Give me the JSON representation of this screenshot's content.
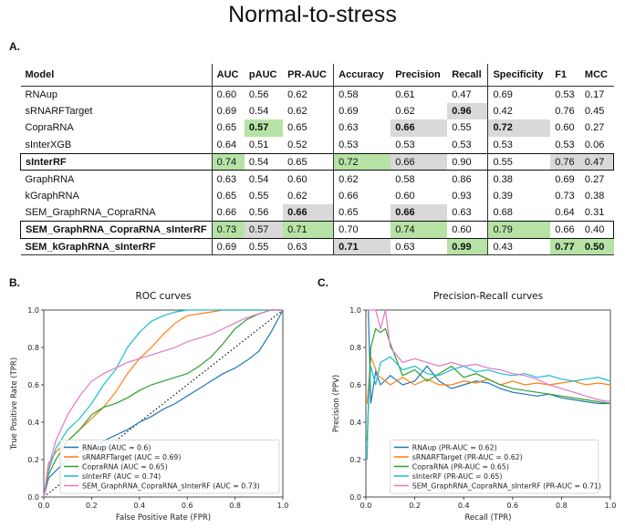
{
  "figure": {
    "title": "Normal-to-stress",
    "panel_a_label": "A.",
    "panel_b_label": "B.",
    "panel_c_label": "C."
  },
  "table": {
    "headers": [
      "Model",
      "AUC",
      "pAUC",
      "PR-AUC",
      "Accuracy",
      "Precision",
      "Recall",
      "Specificity",
      "F1",
      "MCC"
    ],
    "rows": [
      {
        "model": "RNAup",
        "values": [
          "0.60",
          "0.56",
          "0.62",
          "0.58",
          "0.61",
          "0.47",
          "0.69",
          "0.53",
          "0.17"
        ],
        "hl": [
          "",
          "",
          "",
          "",
          "",
          "",
          "",
          "",
          ""
        ]
      },
      {
        "model": "sRNARFTarget",
        "values": [
          "0.69",
          "0.54",
          "0.62",
          "0.69",
          "0.62",
          "0.96",
          "0.42",
          "0.76",
          "0.45"
        ],
        "hl": [
          "",
          "",
          "",
          "",
          "",
          "grey",
          "",
          "",
          ""
        ]
      },
      {
        "model": "CopraRNA",
        "values": [
          "0.65",
          "0.57",
          "0.65",
          "0.63",
          "0.66",
          "0.55",
          "0.72",
          "0.60",
          "0.27"
        ],
        "hl": [
          "",
          "green",
          "",
          "",
          "grey",
          "",
          "grey",
          "",
          ""
        ]
      },
      {
        "model": "sInterXGB",
        "values": [
          "0.64",
          "0.51",
          "0.52",
          "0.53",
          "0.53",
          "0.53",
          "0.53",
          "0.53",
          "0.06"
        ],
        "hl": [
          "",
          "",
          "",
          "",
          "",
          "",
          "",
          "",
          ""
        ]
      },
      {
        "model": "sInterRF",
        "values": [
          "0.74",
          "0.54",
          "0.65",
          "0.72",
          "0.66",
          "0.90",
          "0.55",
          "0.76",
          "0.47"
        ],
        "hl": [
          "green",
          "",
          "",
          "green",
          "grey",
          "",
          "",
          "grey",
          "grey"
        ],
        "boxed": true,
        "bold": true
      },
      {
        "model": "GraphRNA",
        "values": [
          "0.63",
          "0.54",
          "0.60",
          "0.62",
          "0.58",
          "0.86",
          "0.38",
          "0.69",
          "0.27"
        ],
        "hl": [
          "",
          "",
          "",
          "",
          "",
          "",
          "",
          "",
          ""
        ]
      },
      {
        "model": "kGraphRNA",
        "values": [
          "0.65",
          "0.55",
          "0.62",
          "0.66",
          "0.60",
          "0.93",
          "0.39",
          "0.73",
          "0.38"
        ],
        "hl": [
          "",
          "",
          "",
          "",
          "",
          "",
          "",
          "",
          ""
        ]
      },
      {
        "model": "SEM_GraphRNA_CopraRNA",
        "values": [
          "0.66",
          "0.56",
          "0.66",
          "0.65",
          "0.66",
          "0.63",
          "0.68",
          "0.64",
          "0.31"
        ],
        "hl": [
          "",
          "",
          "grey",
          "",
          "grey",
          "",
          "",
          "",
          ""
        ]
      },
      {
        "model": "SEM_GraphRNA_CopraRNA_sInterRF",
        "values": [
          "0.73",
          "0.57",
          "0.71",
          "0.70",
          "0.74",
          "0.60",
          "0.79",
          "0.66",
          "0.40"
        ],
        "hl": [
          "green",
          "grey",
          "green",
          "",
          "green",
          "",
          "green",
          "",
          ""
        ],
        "boxed": true,
        "bold": true
      },
      {
        "model": "SEM_kGraphRNA_sInterRF",
        "values": [
          "0.69",
          "0.55",
          "0.63",
          "0.71",
          "0.63",
          "0.99",
          "0.43",
          "0.77",
          "0.50"
        ],
        "hl": [
          "",
          "",
          "",
          "grey",
          "",
          "green",
          "",
          "green",
          "green"
        ],
        "bold": true
      }
    ]
  },
  "chart_data": [
    {
      "type": "line",
      "title": "ROC curves",
      "xlabel": "False Positive Rate (FPR)",
      "ylabel": "True Positive Rate (TPR)",
      "xlim": [
        0,
        1
      ],
      "ylim": [
        0,
        1
      ],
      "xticks": [
        "0.0",
        "0.2",
        "0.4",
        "0.6",
        "0.8",
        "1.0"
      ],
      "yticks": [
        "0.0",
        "0.2",
        "0.4",
        "0.6",
        "0.8",
        "1.0"
      ],
      "legend_position": "lower-right",
      "diagonal": true,
      "series": [
        {
          "name": "RNAup (AUC = 0.6)",
          "color": "#1f77b4",
          "x": [
            0,
            0.02,
            0.05,
            0.1,
            0.15,
            0.2,
            0.25,
            0.3,
            0.35,
            0.4,
            0.45,
            0.5,
            0.55,
            0.6,
            0.65,
            0.7,
            0.75,
            0.8,
            0.85,
            0.9,
            0.95,
            1.0
          ],
          "y": [
            0,
            0.1,
            0.14,
            0.2,
            0.24,
            0.26,
            0.3,
            0.33,
            0.36,
            0.4,
            0.43,
            0.47,
            0.5,
            0.54,
            0.58,
            0.62,
            0.66,
            0.69,
            0.73,
            0.78,
            0.88,
            1.0
          ]
        },
        {
          "name": "sRNARFTarget (AUC = 0.69)",
          "color": "#ff7f0e",
          "x": [
            0,
            0.02,
            0.05,
            0.1,
            0.15,
            0.2,
            0.25,
            0.3,
            0.35,
            0.4,
            0.45,
            0.5,
            0.55,
            0.6,
            0.65,
            0.7,
            0.75,
            0.8,
            0.85,
            0.9,
            0.95,
            1.0
          ],
          "y": [
            0,
            0.18,
            0.24,
            0.3,
            0.36,
            0.42,
            0.48,
            0.56,
            0.66,
            0.74,
            0.8,
            0.87,
            0.93,
            0.97,
            0.98,
            0.99,
            1.0,
            1.0,
            1.0,
            1.0,
            1.0,
            1.0
          ]
        },
        {
          "name": "CopraRNA (AUC = 0.65)",
          "color": "#2ca02c",
          "x": [
            0,
            0.02,
            0.05,
            0.1,
            0.15,
            0.2,
            0.25,
            0.3,
            0.35,
            0.4,
            0.45,
            0.5,
            0.55,
            0.6,
            0.65,
            0.7,
            0.75,
            0.8,
            0.85,
            0.9,
            0.95,
            1.0
          ],
          "y": [
            0,
            0.12,
            0.2,
            0.3,
            0.36,
            0.44,
            0.48,
            0.5,
            0.53,
            0.57,
            0.6,
            0.62,
            0.64,
            0.66,
            0.7,
            0.75,
            0.82,
            0.9,
            0.95,
            0.98,
            1.0,
            1.0
          ]
        },
        {
          "name": "sInterRF (AUC = 0.74)",
          "color": "#17becf",
          "x": [
            0,
            0.02,
            0.05,
            0.1,
            0.15,
            0.2,
            0.25,
            0.3,
            0.35,
            0.4,
            0.45,
            0.5,
            0.55,
            0.6,
            0.65,
            0.7,
            0.75,
            0.8,
            0.85,
            0.9,
            0.95,
            1.0
          ],
          "y": [
            0,
            0.14,
            0.26,
            0.36,
            0.42,
            0.5,
            0.6,
            0.68,
            0.8,
            0.88,
            0.94,
            0.97,
            0.99,
            1.0,
            1.0,
            1.0,
            1.0,
            1.0,
            1.0,
            1.0,
            1.0,
            1.0
          ]
        },
        {
          "name": "SEM_GraphRNA_CopraRNA_sInterRF (AUC = 0.73)",
          "color": "#e377c2",
          "x": [
            0,
            0.02,
            0.05,
            0.1,
            0.15,
            0.2,
            0.25,
            0.3,
            0.35,
            0.4,
            0.45,
            0.5,
            0.55,
            0.6,
            0.65,
            0.7,
            0.75,
            0.8,
            0.85,
            0.9,
            0.95,
            1.0
          ],
          "y": [
            0,
            0.16,
            0.3,
            0.44,
            0.54,
            0.62,
            0.66,
            0.69,
            0.72,
            0.74,
            0.76,
            0.78,
            0.8,
            0.83,
            0.85,
            0.87,
            0.9,
            0.93,
            0.96,
            0.98,
            1.0,
            1.0
          ]
        }
      ]
    },
    {
      "type": "line",
      "title": "Precision-Recall curves",
      "xlabel": "Recall (TPR)",
      "ylabel": "Precision (PPV)",
      "xlim": [
        0,
        1
      ],
      "ylim": [
        0,
        1
      ],
      "xticks": [
        "0.0",
        "0.2",
        "0.4",
        "0.6",
        "0.8",
        "1.0"
      ],
      "yticks": [
        "0.0",
        "0.2",
        "0.4",
        "0.6",
        "0.8",
        "1.0"
      ],
      "legend_position": "lower-left",
      "diagonal": false,
      "series": [
        {
          "name": "RNAup (PR-AUC = 0.62)",
          "color": "#1f77b4",
          "x": [
            0.005,
            0.01,
            0.02,
            0.04,
            0.06,
            0.1,
            0.15,
            0.2,
            0.25,
            0.3,
            0.35,
            0.4,
            0.45,
            0.5,
            0.55,
            0.6,
            0.65,
            0.7,
            0.75,
            0.8,
            0.85,
            0.9,
            0.95,
            1.0
          ],
          "y": [
            1.0,
            1.0,
            0.5,
            0.67,
            0.6,
            0.65,
            0.6,
            0.62,
            0.7,
            0.62,
            0.58,
            0.6,
            0.62,
            0.61,
            0.58,
            0.56,
            0.55,
            0.54,
            0.55,
            0.53,
            0.52,
            0.51,
            0.5,
            0.5
          ]
        },
        {
          "name": "sRNARFTarget (PR-AUC = 0.62)",
          "color": "#ff7f0e",
          "x": [
            0.005,
            0.02,
            0.05,
            0.08,
            0.1,
            0.15,
            0.2,
            0.25,
            0.3,
            0.35,
            0.4,
            0.45,
            0.5,
            0.55,
            0.6,
            0.65,
            0.7,
            0.75,
            0.8,
            0.85,
            0.9,
            0.95,
            1.0
          ],
          "y": [
            0.5,
            0.75,
            0.65,
            0.62,
            0.6,
            0.64,
            0.6,
            0.63,
            0.6,
            0.6,
            0.62,
            0.61,
            0.63,
            0.6,
            0.62,
            0.6,
            0.61,
            0.6,
            0.61,
            0.62,
            0.6,
            0.61,
            0.6
          ]
        },
        {
          "name": "CopraRNA (PR-AUC = 0.65)",
          "color": "#2ca02c",
          "x": [
            0.005,
            0.02,
            0.04,
            0.06,
            0.08,
            0.1,
            0.15,
            0.2,
            0.25,
            0.3,
            0.35,
            0.4,
            0.45,
            0.5,
            0.55,
            0.6,
            0.65,
            0.7,
            0.75,
            0.8,
            0.85,
            0.9,
            0.95,
            1.0
          ],
          "y": [
            0.3,
            0.8,
            0.9,
            0.88,
            0.9,
            0.82,
            0.65,
            0.68,
            0.62,
            0.66,
            0.7,
            0.64,
            0.66,
            0.63,
            0.6,
            0.58,
            0.57,
            0.56,
            0.55,
            0.54,
            0.53,
            0.52,
            0.51,
            0.5
          ]
        },
        {
          "name": "sInterRF (PR-AUC = 0.65)",
          "color": "#17becf",
          "x": [
            0.005,
            0.01,
            0.02,
            0.04,
            0.06,
            0.1,
            0.15,
            0.2,
            0.25,
            0.3,
            0.35,
            0.4,
            0.45,
            0.5,
            0.55,
            0.6,
            0.65,
            0.7,
            0.75,
            0.8,
            0.85,
            0.9,
            0.95,
            1.0
          ],
          "y": [
            0.2,
            0.5,
            0.7,
            0.6,
            0.72,
            0.75,
            0.68,
            0.7,
            0.66,
            0.65,
            0.68,
            0.7,
            0.67,
            0.68,
            0.66,
            0.65,
            0.66,
            0.64,
            0.65,
            0.63,
            0.62,
            0.63,
            0.64,
            0.62
          ]
        },
        {
          "name": "SEM_GraphRNA_CopraRNA_sInterRF (PR-AUC = 0.71)",
          "color": "#e377c2",
          "x": [
            0.005,
            0.02,
            0.04,
            0.06,
            0.08,
            0.1,
            0.15,
            0.2,
            0.25,
            0.3,
            0.35,
            0.4,
            0.45,
            0.5,
            0.55,
            0.6,
            0.65,
            0.7,
            0.75,
            0.8,
            0.85,
            0.9,
            0.95,
            1.0
          ],
          "y": [
            1.0,
            1.0,
            1.0,
            0.9,
            1.0,
            0.8,
            0.72,
            0.74,
            0.72,
            0.7,
            0.72,
            0.7,
            0.71,
            0.69,
            0.68,
            0.66,
            0.65,
            0.63,
            0.6,
            0.58,
            0.56,
            0.54,
            0.52,
            0.51
          ]
        }
      ]
    }
  ]
}
